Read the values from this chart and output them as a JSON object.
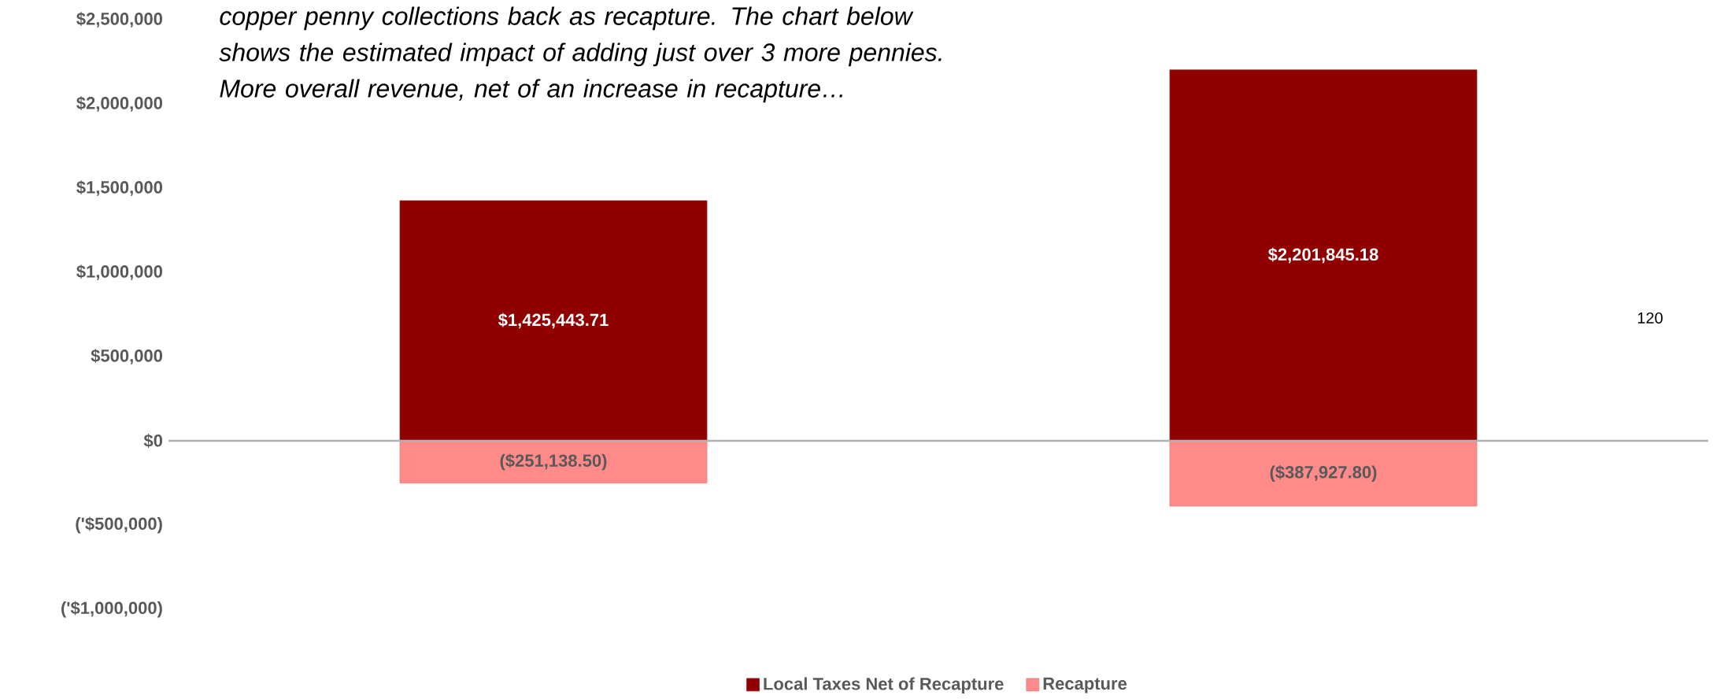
{
  "chart_data": {
    "type": "bar",
    "stacked": true,
    "categories": [
      null,
      null
    ],
    "series": [
      {
        "name": "Local Taxes Net of Recapture",
        "color": "#900000",
        "values": [
          1425443.71,
          2201845.18
        ],
        "value_labels": [
          "$1,425,443.71",
          "$2,201,845.18"
        ]
      },
      {
        "name": "Recapture",
        "color": "#ff8a8a",
        "values": [
          -251138.5,
          -387927.8
        ],
        "value_labels": [
          "($251,138.50)",
          "($387,927.80)"
        ]
      }
    ],
    "ylim": [
      -1000000,
      2500000
    ],
    "yticks": [
      {
        "value": -1000000,
        "label": "('$1,000,000)"
      },
      {
        "value": -500000,
        "label": "('$500,000)"
      },
      {
        "value": 0,
        "label": "$0"
      },
      {
        "value": 500000,
        "label": "$500,000"
      },
      {
        "value": 1000000,
        "label": "$1,000,000"
      },
      {
        "value": 1500000,
        "label": "$1,500,000"
      },
      {
        "value": 2000000,
        "label": "$2,000,000"
      },
      {
        "value": 2500000,
        "label": "$2,500,000"
      }
    ],
    "tick_labels": "y",
    "legend": "bottom",
    "annotations": [
      "copper penny collections back as recapture.  The chart below shows the estimated impact of adding just over 3 more pennies.  More overall revenue, net of an increase in recapture…",
      "120"
    ]
  }
}
